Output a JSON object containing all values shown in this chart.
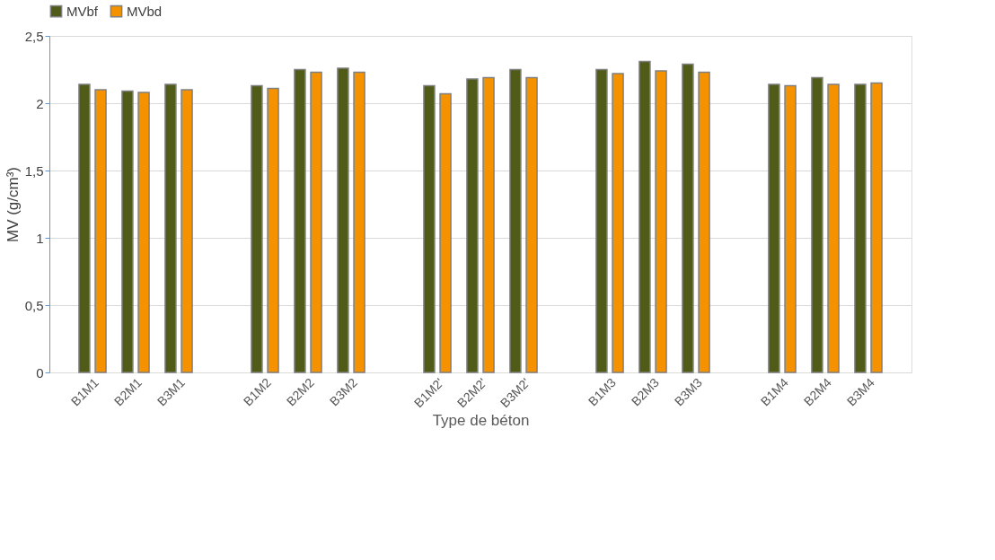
{
  "chart_data": {
    "type": "bar",
    "xlabel": "Type de béton",
    "ylabel": "MV (g/cm³)",
    "categories": [
      "B1M1",
      "B2M1",
      "B3M1",
      null,
      "B1M2",
      "B2M2",
      "B3M2",
      null,
      "B1M2'",
      "B2M2'",
      "B3M2'",
      null,
      "B1M3",
      "B2M3",
      "B3M3",
      null,
      "B1M4",
      "B2M4",
      "B3M4"
    ],
    "series": [
      {
        "name": "MVbf",
        "color": "#4f5b17",
        "values": [
          2.14,
          2.09,
          2.14,
          null,
          2.13,
          2.25,
          2.26,
          null,
          2.13,
          2.18,
          2.25,
          null,
          2.25,
          2.31,
          2.29,
          null,
          2.14,
          2.19,
          2.14
        ]
      },
      {
        "name": "MVbd",
        "color": "#f59200",
        "values": [
          2.1,
          2.08,
          2.1,
          null,
          2.11,
          2.23,
          2.23,
          null,
          2.07,
          2.19,
          2.19,
          null,
          2.22,
          2.24,
          2.23,
          null,
          2.13,
          2.14,
          2.15
        ]
      }
    ],
    "ylim": [
      0,
      2.5
    ],
    "yticks": [
      0,
      {
        "value": 0.5,
        "label": "0,5"
      },
      1,
      {
        "value": 1.5,
        "label": "1,5"
      },
      2,
      {
        "value": 2.5,
        "label": "2,5"
      }
    ],
    "grid": "y",
    "legend": "top"
  }
}
